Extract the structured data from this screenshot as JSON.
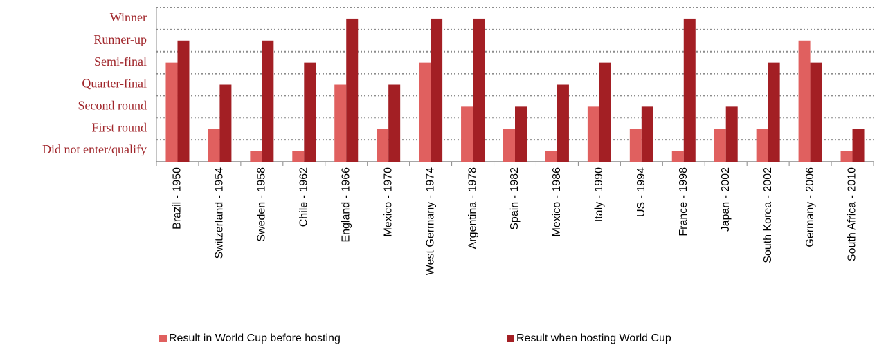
{
  "chart_data": {
    "type": "bar",
    "categories": [
      "Brazil - 1950",
      "Switzerland - 1954",
      "Sweden - 1958",
      "Chile - 1962",
      "England - 1966",
      "Mexico - 1970",
      "West Germany - 1974",
      "Argentina - 1978",
      "Spain - 1982",
      "Mexico - 1986",
      "Italy - 1990",
      "US - 1994",
      "France - 1998",
      "Japan - 2002",
      "South Korea - 2002",
      "Germany - 2006",
      "South Africa - 2010"
    ],
    "series": [
      {
        "name": "Result in World Cup before hosting",
        "color": "#e0605f",
        "values": [
          4,
          1,
          0,
          0,
          3,
          1,
          4,
          2,
          1,
          0,
          2,
          1,
          0,
          1,
          1,
          5,
          0
        ]
      },
      {
        "name": "Result when hosting World Cup",
        "color": "#a31f24",
        "values": [
          5,
          3,
          5,
          4,
          6,
          3,
          6,
          6,
          2,
          3,
          4,
          2,
          6,
          2,
          4,
          4,
          1
        ]
      }
    ],
    "ylim": [
      -0.5,
      6.5
    ],
    "yticks": [
      {
        "value": 0,
        "label": "Did not enter/qualify"
      },
      {
        "value": 1,
        "label": "First round"
      },
      {
        "value": 2,
        "label": "Second round"
      },
      {
        "value": 3,
        "label": "Quarter-final"
      },
      {
        "value": 4,
        "label": "Semi-final"
      },
      {
        "value": 5,
        "label": "Runner-up"
      },
      {
        "value": 6,
        "label": "Winner"
      }
    ],
    "ygrid": [
      0.5,
      1.5,
      2.5,
      3.5,
      4.5,
      5.5,
      6.5
    ],
    "grid": true,
    "legend": "bottom"
  }
}
